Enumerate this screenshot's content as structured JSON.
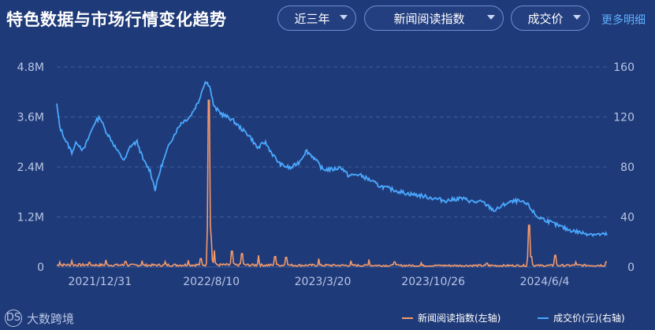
{
  "header": {
    "title": "特色数据与市场行情变化趋势",
    "range_select": "近三年",
    "left_metric_select": "新闻阅读指数",
    "right_metric_select": "成交价",
    "more_link": "更多明细"
  },
  "brand": {
    "name": "大数跨境",
    "mark": "DS"
  },
  "colors": {
    "background": "#1f3a78",
    "news": "#f39a6b",
    "price": "#4aa8ff",
    "grid": "#3f5c99",
    "axis_text": "#b7c5e6"
  },
  "chart_data": {
    "type": "line",
    "x_ticks": [
      "2021/12/31",
      "2022/8/10",
      "2023/3/20",
      "2023/10/26",
      "2024/6/4"
    ],
    "y_left": {
      "ticks": [
        "0",
        "1.2M",
        "2.4M",
        "3.6M",
        "4.8M"
      ],
      "range": [
        0,
        4800000
      ]
    },
    "y_right": {
      "ticks": [
        "0",
        "40",
        "80",
        "120",
        "160"
      ],
      "range": [
        0,
        160
      ]
    },
    "series": [
      {
        "name": "新闻阅读指数(左轴)",
        "axis": "left",
        "baseline": [
          [
            "2021/10/10",
            60000
          ],
          [
            "2022/4/1",
            50000
          ],
          [
            "2022/8/1",
            60000
          ],
          [
            "2023/1/1",
            50000
          ],
          [
            "2023/10/1",
            40000
          ],
          [
            "2024/6/1",
            40000
          ],
          [
            "2024/10/6",
            50000
          ]
        ],
        "spikes": [
          [
            "2021/10/12",
            120000
          ],
          [
            "2021/11/5",
            150000
          ],
          [
            "2021/12/10",
            110000
          ],
          [
            "2022/1/12",
            170000
          ],
          [
            "2022/2/20",
            130000
          ],
          [
            "2022/3/25",
            150000
          ],
          [
            "2022/5/10",
            130000
          ],
          [
            "2022/6/25",
            160000
          ],
          [
            "2022/7/20",
            200000
          ],
          [
            "2022/8/5",
            4000000
          ],
          [
            "2022/8/9",
            650000
          ],
          [
            "2022/8/16",
            400000
          ],
          [
            "2022/9/20",
            380000
          ],
          [
            "2022/10/10",
            320000
          ],
          [
            "2022/11/12",
            280000
          ],
          [
            "2022/12/15",
            250000
          ],
          [
            "2023/1/6",
            230000
          ],
          [
            "2023/3/12",
            200000
          ],
          [
            "2023/5/15",
            150000
          ],
          [
            "2023/6/20",
            180000
          ],
          [
            "2023/8/10",
            120000
          ],
          [
            "2023/10/2",
            100000
          ],
          [
            "2024/2/10",
            90000
          ],
          [
            "2024/5/4",
            1000000
          ],
          [
            "2024/5/8",
            250000
          ],
          [
            "2024/6/25",
            280000
          ],
          [
            "2024/8/5",
            120000
          ],
          [
            "2024/10/5",
            120000
          ]
        ]
      },
      {
        "name": "成交价(元)(右轴)",
        "axis": "right",
        "points": [
          [
            "2021/10/6",
            130
          ],
          [
            "2021/10/12",
            112
          ],
          [
            "2021/10/25",
            100
          ],
          [
            "2021/11/5",
            92
          ],
          [
            "2021/11/15",
            100
          ],
          [
            "2021/11/28",
            93
          ],
          [
            "2021/12/8",
            103
          ],
          [
            "2021/12/20",
            115
          ],
          [
            "2021/12/31",
            120
          ],
          [
            "2022/1/10",
            110
          ],
          [
            "2022/1/22",
            102
          ],
          [
            "2022/2/5",
            92
          ],
          [
            "2022/2/18",
            85
          ],
          [
            "2022/3/2",
            97
          ],
          [
            "2022/3/15",
            100
          ],
          [
            "2022/3/28",
            85
          ],
          [
            "2022/4/10",
            77
          ],
          [
            "2022/4/20",
            62
          ],
          [
            "2022/5/2",
            80
          ],
          [
            "2022/5/20",
            100
          ],
          [
            "2022/6/10",
            115
          ],
          [
            "2022/6/28",
            120
          ],
          [
            "2022/7/15",
            132
          ],
          [
            "2022/7/28",
            148
          ],
          [
            "2022/8/6",
            146
          ],
          [
            "2022/8/15",
            128
          ],
          [
            "2022/9/1",
            122
          ],
          [
            "2022/9/20",
            118
          ],
          [
            "2022/10/10",
            110
          ],
          [
            "2022/10/25",
            105
          ],
          [
            "2022/11/10",
            95
          ],
          [
            "2022/11/25",
            100
          ],
          [
            "2022/12/10",
            90
          ],
          [
            "2022/12/25",
            82
          ],
          [
            "2023/1/15",
            79
          ],
          [
            "2023/2/1",
            84
          ],
          [
            "2023/2/15",
            93
          ],
          [
            "2023/3/1",
            88
          ],
          [
            "2023/3/20",
            78
          ],
          [
            "2023/4/10",
            78
          ],
          [
            "2023/4/25",
            80
          ],
          [
            "2023/5/10",
            73
          ],
          [
            "2023/5/30",
            74
          ],
          [
            "2023/6/20",
            70
          ],
          [
            "2023/7/10",
            65
          ],
          [
            "2023/8/5",
            62
          ],
          [
            "2023/9/1",
            59
          ],
          [
            "2023/10/1",
            57
          ],
          [
            "2023/10/26",
            55
          ],
          [
            "2023/11/20",
            53
          ],
          [
            "2023/12/20",
            55
          ],
          [
            "2024/1/15",
            52
          ],
          [
            "2024/2/1",
            52
          ],
          [
            "2024/2/25",
            45
          ],
          [
            "2024/3/20",
            51
          ],
          [
            "2024/4/10",
            53
          ],
          [
            "2024/5/1",
            50
          ],
          [
            "2024/5/20",
            40
          ],
          [
            "2024/6/4",
            38
          ],
          [
            "2024/6/25",
            34
          ],
          [
            "2024/7/20",
            30
          ],
          [
            "2024/8/20",
            27
          ],
          [
            "2024/9/20",
            26
          ],
          [
            "2024/10/6",
            26
          ]
        ]
      }
    ],
    "grid": "horizontal",
    "legend": "bottom-right"
  }
}
